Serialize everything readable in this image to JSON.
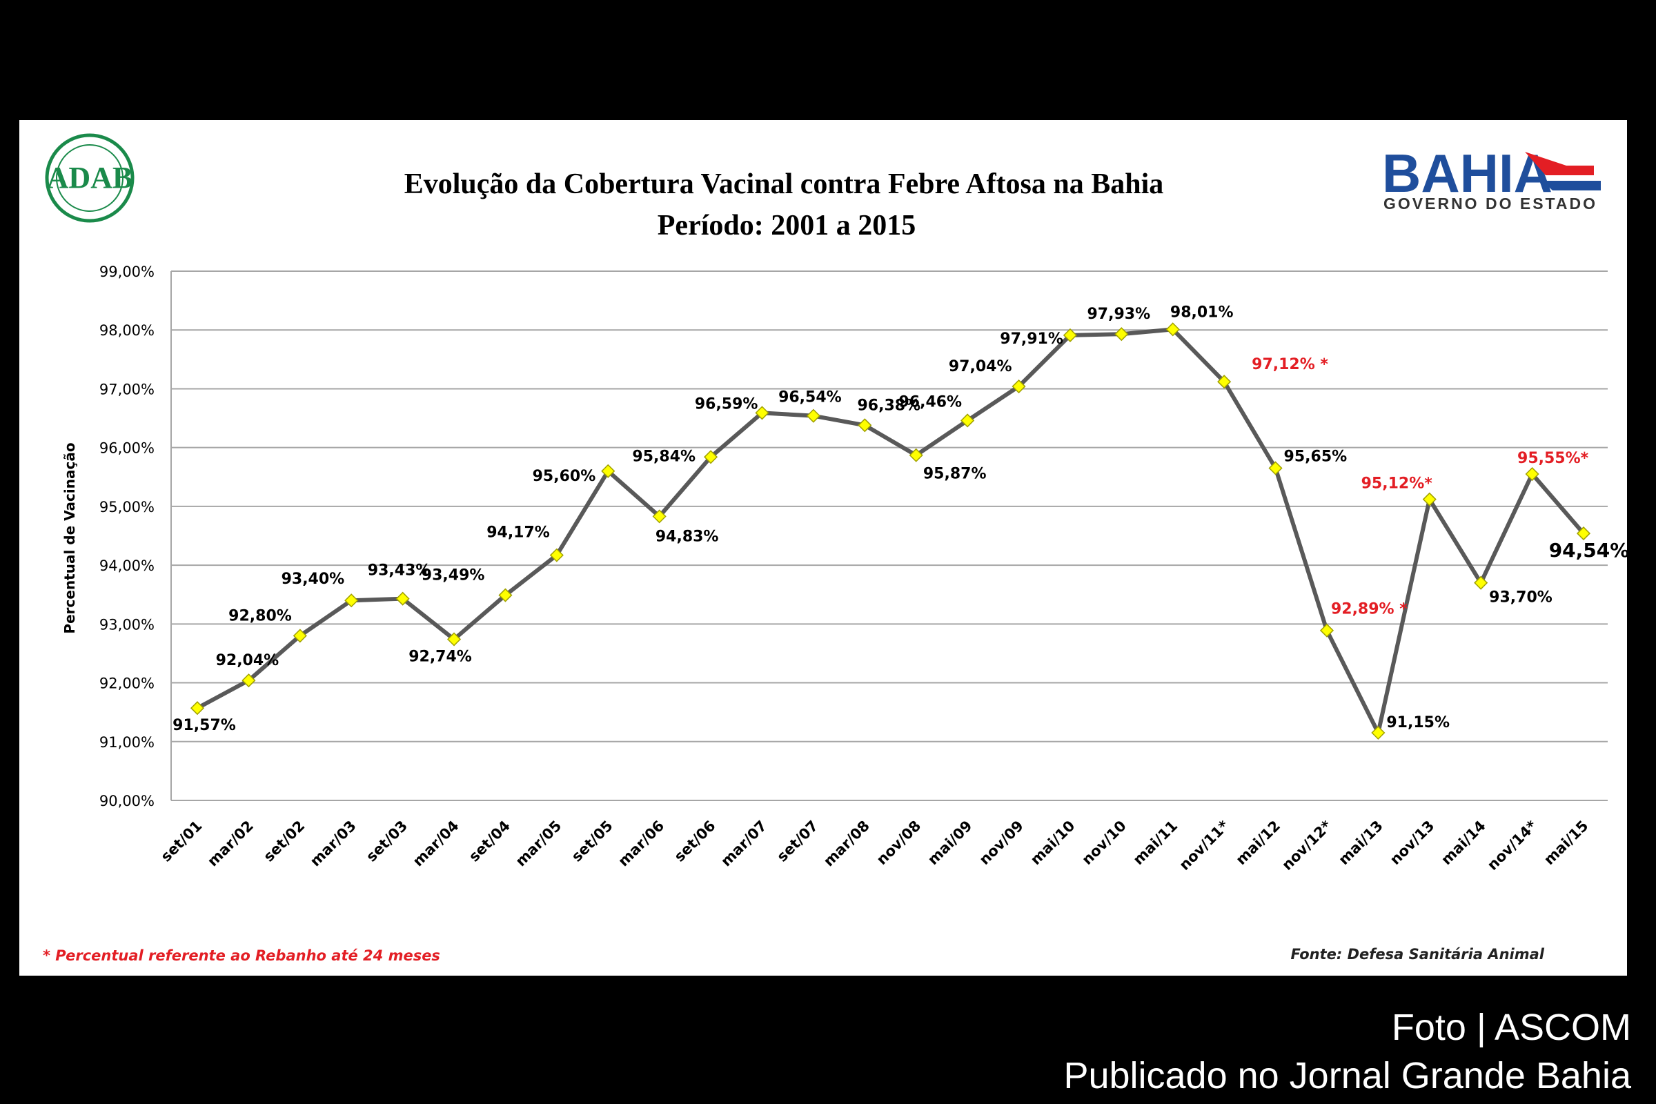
{
  "chart_data": {
    "type": "line",
    "title": "Evolução da Cobertura Vacinal contra Febre Aftosa na Bahia",
    "subtitle": "Período: 2001 a 2015",
    "ylabel": "Percentual de Vacinação",
    "xlabel": "",
    "ylim": [
      90,
      99
    ],
    "yticks": [
      "90,00%",
      "91,00%",
      "92,00%",
      "93,00%",
      "94,00%",
      "95,00%",
      "96,00%",
      "97,00%",
      "98,00%",
      "99,00%"
    ],
    "grid": true,
    "categories": [
      "set/01",
      "mar/02",
      "set/02",
      "mar/03",
      "set/03",
      "mar/04",
      "set/04",
      "mar/05",
      "set/05",
      "mar/06",
      "set/06",
      "mar/07",
      "set/07",
      "mar/08",
      "nov/08",
      "mai/09",
      "nov/09",
      "mai/10",
      "nov/10",
      "mai/11",
      "nov/11*",
      "mai/12",
      "nov/12*",
      "mai/13",
      "nov/13",
      "mai/14",
      "nov/14*",
      "mai/15"
    ],
    "values": [
      91.57,
      92.04,
      92.8,
      93.4,
      93.43,
      92.74,
      93.49,
      94.17,
      95.6,
      94.83,
      95.84,
      96.59,
      96.54,
      96.38,
      95.87,
      96.46,
      97.04,
      97.91,
      97.93,
      98.01,
      97.12,
      95.65,
      92.89,
      91.15,
      95.12,
      93.7,
      95.55,
      94.54
    ],
    "data_labels": [
      "91,57%",
      "92,04%",
      "92,80%",
      "93,40%",
      "93,43%",
      "92,74%",
      "93,49%",
      "94,17%",
      "95,60%",
      "94,83%",
      "95,84%",
      "96,59%",
      "96,54%",
      "96,38%",
      "95,87%",
      "96,46%",
      "97,04%",
      "97,91%",
      "97,93%",
      "98,01%",
      "97,12% *",
      "95,65%",
      "92,89% *",
      "91,15%",
      "95,12%*",
      "93,70%",
      "95,55%*",
      "94,54%"
    ],
    "highlighted_labels": [
      20,
      22,
      24,
      26
    ],
    "colors": {
      "line": "#595959",
      "marker": "#ffff00",
      "marker_edge": "#a0a000",
      "grid": "#a6a6a6",
      "highlight": "#e31e24",
      "text": "#000000"
    }
  },
  "footnote": "* Percentual referente ao Rebanho até 24 meses",
  "source": "Fonte: Defesa Sanitária Animal",
  "logos": {
    "left": "ADAB",
    "right": "BAHIA",
    "right_sub": "GOVERNO DO ESTADO",
    "left_color": "#1a8a4a",
    "right_color": "#1f4e9c"
  },
  "credits": {
    "photo": "Foto | ASCOM",
    "published": "Publicado no Jornal Grande Bahia"
  }
}
